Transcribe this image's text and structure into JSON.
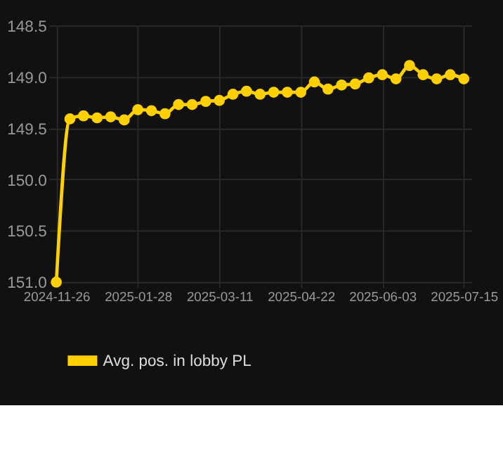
{
  "chart_data": {
    "type": "line",
    "categories": [
      "2024-11-26",
      null,
      null,
      null,
      null,
      null,
      "2025-01-28",
      null,
      null,
      null,
      null,
      null,
      "2025-03-11",
      null,
      null,
      null,
      null,
      null,
      "2025-04-22",
      null,
      null,
      null,
      null,
      null,
      "2025-06-03",
      null,
      null,
      null,
      null,
      null,
      "2025-07-15"
    ],
    "series": [
      {
        "name": "Avg. pos. in lobby PL",
        "color": "#ffd000",
        "values": [
          151.0,
          149.41,
          149.38,
          149.4,
          149.39,
          149.42,
          149.32,
          149.33,
          149.36,
          149.27,
          149.27,
          149.24,
          149.23,
          149.17,
          149.14,
          149.17,
          149.15,
          149.15,
          149.15,
          149.05,
          149.12,
          149.08,
          149.07,
          149.01,
          148.98,
          149.02,
          148.89,
          148.98,
          149.02,
          148.98,
          149.02
        ]
      }
    ],
    "ylim": [
      151.05,
      148.5
    ],
    "yticks": [
      {
        "value": 148.5,
        "label": "148.5"
      },
      {
        "value": 149,
        "label": "149.0"
      },
      {
        "value": 149.5,
        "label": "149.5"
      },
      {
        "value": 150,
        "label": "150.0"
      },
      {
        "value": 150.5,
        "label": "150.5"
      },
      {
        "value": 151,
        "label": "151.0"
      }
    ],
    "grid": true,
    "legend": "bottom",
    "marker": "circle",
    "line_style": "solid"
  }
}
